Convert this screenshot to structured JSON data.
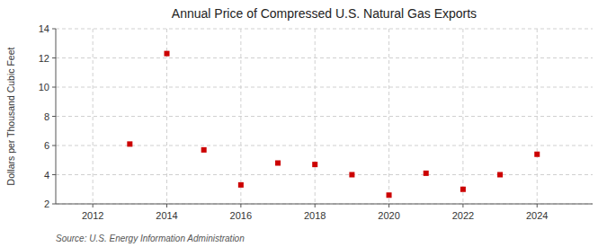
{
  "chart_data": {
    "type": "scatter",
    "title": "Annual Price of Compressed U.S. Natural Gas Exports",
    "ylabel": "Dollars per Thousand Cubic Feet",
    "source": "Source: U.S. Energy Information Administration",
    "x": [
      2013,
      2014,
      2015,
      2016,
      2017,
      2018,
      2019,
      2020,
      2021,
      2022,
      2023,
      2024
    ],
    "values": [
      6.1,
      12.3,
      5.7,
      3.3,
      4.8,
      4.7,
      4.0,
      2.6,
      4.1,
      3.0,
      4.0,
      5.4
    ],
    "color": "#cc0000",
    "marker": "square",
    "xlim": [
      2011,
      2025.5
    ],
    "ylim": [
      2,
      14
    ],
    "xticks": [
      2012,
      2014,
      2016,
      2018,
      2020,
      2022,
      2024
    ],
    "yticks": [
      2,
      4,
      6,
      8,
      10,
      12,
      14
    ],
    "grid": true
  }
}
